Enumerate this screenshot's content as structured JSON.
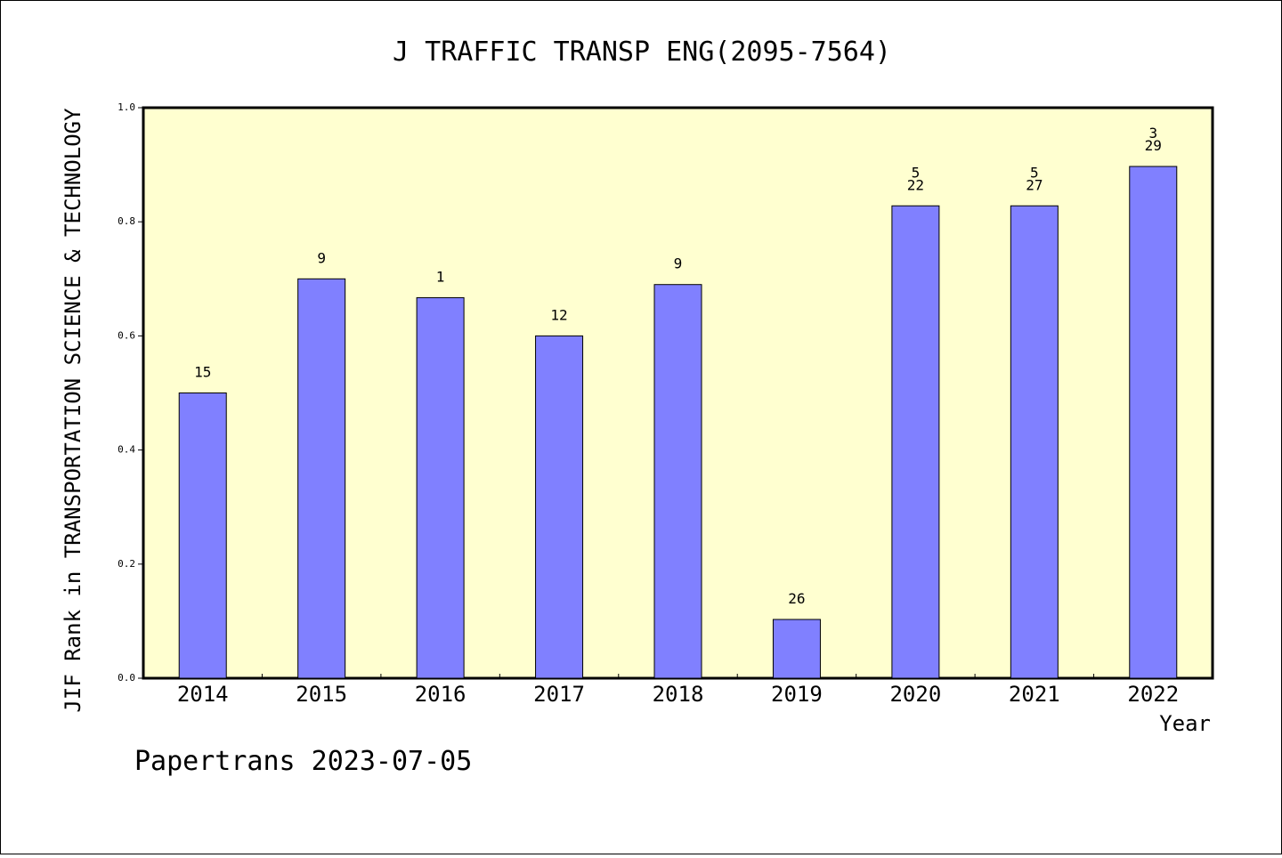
{
  "chart_data": {
    "type": "bar",
    "title": "J TRAFFIC TRANSP ENG(2095-7564)",
    "xlabel": "Year",
    "ylabel": "JIF Rank in TRANSPORTATION SCIENCE & TECHNOLOGY",
    "ylim": [
      0,
      1
    ],
    "yticks": [
      "0.0",
      "0.2",
      "0.4",
      "0.6",
      "0.8",
      "1.0"
    ],
    "categories": [
      "2014",
      "2015",
      "2016",
      "2017",
      "2018",
      "2019",
      "2020",
      "2021",
      "2022"
    ],
    "values": [
      0.5,
      0.7,
      0.667,
      0.6,
      0.69,
      0.103,
      0.828,
      0.828,
      0.897
    ],
    "labels": [
      [
        "15"
      ],
      [
        "9"
      ],
      [
        "1"
      ],
      [
        "12"
      ],
      [
        "9"
      ],
      [
        "26"
      ],
      [
        "5",
        "22"
      ],
      [
        "5",
        "27"
      ],
      [
        "3",
        "29"
      ]
    ],
    "grid": false,
    "colors": {
      "bar": "#8080ff",
      "plot_background": "#ffffd0",
      "axes": "#000000"
    }
  },
  "footer": "Papertrans 2023-07-05"
}
